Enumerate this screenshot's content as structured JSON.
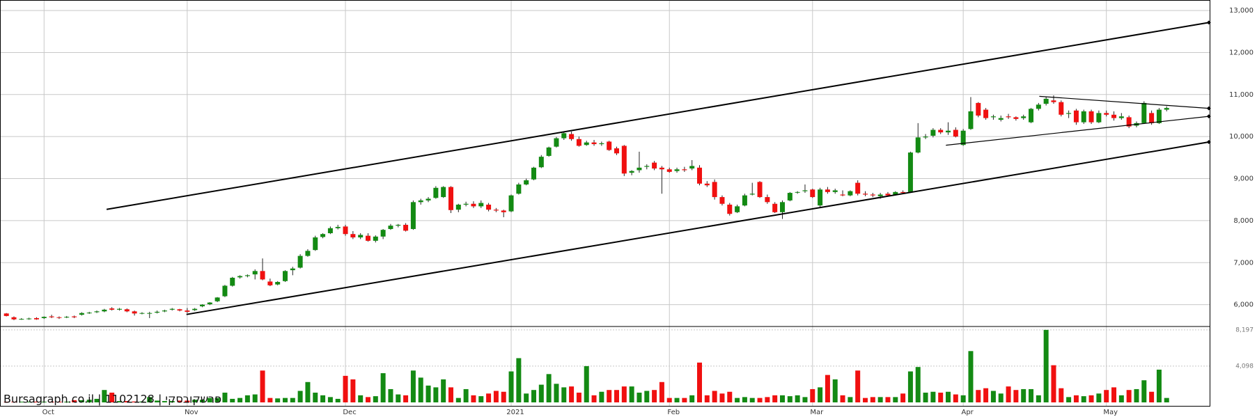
{
  "chart_data": {
    "type": "candlestick",
    "source": "Bursagraph.co.il | 1102128 | פרשקובסקי",
    "categories": [
      null,
      null,
      null,
      null,
      null,
      "Oct",
      null,
      null,
      null,
      null,
      null,
      null,
      null,
      null,
      null,
      null,
      null,
      null,
      null,
      null,
      null,
      null,
      null,
      null,
      "Nov",
      null,
      null,
      null,
      null,
      null,
      null,
      null,
      null,
      null,
      null,
      null,
      null,
      null,
      null,
      null,
      null,
      null,
      null,
      null,
      null,
      "Dec",
      null,
      null,
      null,
      null,
      null,
      null,
      null,
      null,
      null,
      null,
      null,
      null,
      null,
      null,
      null,
      null,
      null,
      null,
      null,
      null,
      null,
      "2021",
      null,
      null,
      null,
      null,
      null,
      null,
      null,
      null,
      null,
      null,
      null,
      null,
      null,
      null,
      null,
      null,
      null,
      null,
      null,
      null,
      "Feb",
      null,
      null,
      null,
      null,
      null,
      null,
      null,
      null,
      null,
      null,
      null,
      null,
      null,
      null,
      null,
      null,
      null,
      null,
      "Mar",
      null,
      null,
      null,
      null,
      null,
      null,
      null,
      null,
      null,
      null,
      null,
      null,
      null,
      null,
      null,
      null,
      null,
      null,
      null,
      "Apr",
      null,
      null,
      null,
      null,
      null,
      null,
      null,
      null,
      null,
      null,
      null,
      null,
      null,
      null,
      null,
      null,
      null,
      null,
      "May",
      null,
      null,
      null,
      null,
      null,
      null,
      null,
      null
    ],
    "open": [
      5790,
      5700,
      5660,
      5660,
      5680,
      5680,
      5720,
      5700,
      5700,
      5720,
      5760,
      5800,
      5820,
      5840,
      5910,
      5880,
      5890,
      5840,
      5790,
      5800,
      5810,
      5840,
      5880,
      5890,
      5860,
      5870,
      5960,
      6010,
      6080,
      6200,
      6450,
      6650,
      6680,
      6720,
      6800,
      6550,
      6480,
      6560,
      6820,
      6880,
      7160,
      7300,
      7610,
      7700,
      7820,
      7860,
      7680,
      7600,
      7640,
      7520,
      7620,
      7800,
      7880,
      7900,
      7800,
      8440,
      8480,
      8540,
      8560,
      8800,
      8260,
      8380,
      8400,
      8340,
      8380,
      8260,
      8240,
      8220,
      8640,
      8860,
      8980,
      9270,
      9540,
      9760,
      9960,
      10060,
      9940,
      9800,
      9860,
      9820,
      9880,
      9720,
      9780,
      9140,
      9200,
      9280,
      9380,
      9260,
      9220,
      9180,
      9220,
      9240,
      9260,
      8880,
      8920,
      8560,
      8380,
      8200,
      8360,
      8620,
      8920,
      8560,
      8400,
      8200,
      8480,
      8680,
      8700,
      8740,
      8360,
      8740,
      8680,
      8620,
      8600,
      8900,
      8640,
      8620,
      8580,
      8640,
      8620,
      8680,
      8680,
      9620,
      9980,
      10020,
      10160,
      10100,
      10160,
      9800,
      10180,
      10800,
      10640,
      10460,
      10400,
      10480,
      10460,
      10440,
      10340,
      10660,
      10780,
      10860,
      10820,
      10540,
      10620,
      10340,
      10600,
      10340,
      10560,
      10520,
      10440,
      10460,
      10260,
      10320,
      10560,
      10320,
      10640
    ],
    "high": [
      5800,
      5720,
      5680,
      5690,
      5700,
      5720,
      5760,
      5720,
      5730,
      5740,
      5820,
      5830,
      5860,
      5900,
      5940,
      5920,
      5910,
      5860,
      5820,
      5830,
      5860,
      5880,
      5920,
      5900,
      5920,
      5920,
      6010,
      6060,
      6180,
      6470,
      6660,
      6700,
      6720,
      6840,
      7100,
      6620,
      6560,
      6820,
      6900,
      7200,
      7320,
      7640,
      7700,
      7860,
      7900,
      7900,
      7750,
      7700,
      7700,
      7650,
      7800,
      7920,
      7920,
      7940,
      8480,
      8520,
      8560,
      8820,
      8820,
      8820,
      8400,
      8450,
      8460,
      8480,
      8420,
      8300,
      8260,
      8620,
      8900,
      9000,
      9280,
      9560,
      9760,
      9990,
      10100,
      10120,
      10000,
      9900,
      9920,
      9880,
      9900,
      9760,
      9800,
      9200,
      9640,
      9340,
      9420,
      9300,
      9260,
      9260,
      9280,
      9440,
      9320,
      8940,
      8980,
      8600,
      8420,
      8380,
      8640,
      8900,
      8940,
      8620,
      8440,
      8480,
      8680,
      8700,
      8860,
      8760,
      8780,
      8800,
      8760,
      8720,
      8720,
      8960,
      8700,
      8660,
      8660,
      8680,
      8700,
      8720,
      9640,
      10320,
      10060,
      10200,
      10200,
      10340,
      10220,
      10180,
      10940,
      10820,
      10680,
      10520,
      10500,
      10540,
      10480,
      10520,
      10680,
      10800,
      10940,
      10980,
      10860,
      10620,
      10660,
      10640,
      10640,
      10620,
      10620,
      10600,
      10560,
      10500,
      10360,
      10840,
      10620,
      10680,
      10720
    ],
    "low": [
      5720,
      5630,
      5640,
      5640,
      5640,
      5660,
      5680,
      5660,
      5680,
      5680,
      5740,
      5780,
      5800,
      5820,
      5860,
      5860,
      5820,
      5740,
      5770,
      5680,
      5790,
      5820,
      5860,
      5840,
      5800,
      5850,
      5940,
      5990,
      6060,
      6180,
      6430,
      6620,
      6650,
      6600,
      6580,
      6440,
      6460,
      6540,
      6700,
      6860,
      7140,
      7280,
      7580,
      7680,
      7790,
      7640,
      7560,
      7560,
      7500,
      7480,
      7560,
      7780,
      7840,
      7740,
      7780,
      8380,
      8440,
      8520,
      8540,
      8180,
      8200,
      8340,
      8300,
      8300,
      8220,
      8200,
      8080,
      8200,
      8620,
      8840,
      8960,
      9250,
      9520,
      9740,
      9920,
      9900,
      9760,
      9780,
      9780,
      9780,
      9660,
      9560,
      9060,
      9080,
      9140,
      9220,
      9200,
      8640,
      9140,
      9140,
      9160,
      9200,
      8840,
      8800,
      8500,
      8360,
      8120,
      8180,
      8340,
      8600,
      8540,
      8400,
      8180,
      8040,
      8460,
      8640,
      8660,
      8540,
      8320,
      8640,
      8640,
      8580,
      8580,
      8600,
      8580,
      8560,
      8520,
      8580,
      8600,
      8640,
      8660,
      9600,
      9940,
      9980,
      10060,
      10040,
      9980,
      9780,
      10160,
      10460,
      10400,
      10400,
      10360,
      10420,
      10380,
      10400,
      10320,
      10620,
      10740,
      10780,
      10480,
      10440,
      10280,
      10300,
      10300,
      10320,
      10480,
      10380,
      10400,
      10200,
      10220,
      10300,
      10280,
      10300,
      10600
    ],
    "close": [
      5730,
      5650,
      5660,
      5670,
      5650,
      5710,
      5700,
      5690,
      5710,
      5700,
      5800,
      5810,
      5840,
      5880,
      5880,
      5900,
      5840,
      5790,
      5800,
      5800,
      5830,
      5860,
      5900,
      5860,
      5830,
      5900,
      6000,
      6050,
      6170,
      6450,
      6640,
      6680,
      6700,
      6800,
      6600,
      6460,
      6540,
      6800,
      6860,
      7160,
      7280,
      7600,
      7680,
      7820,
      7850,
      7680,
      7600,
      7660,
      7520,
      7620,
      7780,
      7880,
      7900,
      7760,
      8440,
      8480,
      8520,
      8780,
      8800,
      8250,
      8380,
      8400,
      8340,
      8420,
      8260,
      8240,
      8200,
      8600,
      8860,
      8960,
      9260,
      9520,
      9740,
      9960,
      10080,
      9940,
      9780,
      9860,
      9820,
      9840,
      9680,
      9600,
      9120,
      9180,
      9260,
      9300,
      9240,
      9220,
      9160,
      9220,
      9200,
      9300,
      8880,
      8840,
      8560,
      8400,
      8160,
      8340,
      8600,
      8640,
      8560,
      8440,
      8200,
      8440,
      8660,
      8680,
      8720,
      8560,
      8740,
      8680,
      8720,
      8600,
      8700,
      8640,
      8620,
      8600,
      8620,
      8600,
      8680,
      8660,
      9620,
      9980,
      10000,
      10160,
      10100,
      10140,
      10000,
      10140,
      10600,
      10500,
      10440,
      10480,
      10440,
      10460,
      10420,
      10480,
      10660,
      10760,
      10900,
      10820,
      10520,
      10560,
      10340,
      10600,
      10340,
      10560,
      10520,
      10440,
      10480,
      10240,
      10320,
      10800,
      10320,
      10640,
      10680
    ],
    "volume": [
      80,
      80,
      80,
      80,
      80,
      80,
      80,
      80,
      80,
      250,
      250,
      300,
      400,
      1400,
      1100,
      150,
      150,
      100,
      100,
      600,
      200,
      150,
      150,
      200,
      200,
      300,
      300,
      500,
      500,
      1100,
      400,
      500,
      800,
      900,
      3600,
      500,
      450,
      500,
      500,
      1300,
      2300,
      1100,
      800,
      600,
      400,
      3000,
      2600,
      800,
      600,
      700,
      3300,
      1500,
      900,
      800,
      3600,
      2800,
      1900,
      1700,
      2600,
      1700,
      500,
      1500,
      800,
      700,
      1000,
      1300,
      1200,
      3500,
      5000,
      1000,
      1400,
      2000,
      3200,
      2100,
      1700,
      1800,
      1100,
      4100,
      800,
      1200,
      1400,
      1400,
      1800,
      1800,
      1100,
      1300,
      1400,
      2300,
      500,
      500,
      500,
      800,
      4500,
      800,
      1300,
      1000,
      1200,
      500,
      600,
      500,
      500,
      600,
      800,
      800,
      700,
      800,
      600,
      1500,
      1700,
      3100,
      2600,
      800,
      600,
      3600,
      500,
      600,
      600,
      600,
      600,
      1000,
      3500,
      4000,
      1100,
      1200,
      1100,
      1200,
      900,
      800,
      5800,
      1400,
      1600,
      1300,
      1000,
      1800,
      1400,
      1500,
      1500,
      800,
      8197,
      4200,
      1600,
      600,
      800,
      700,
      800,
      1000,
      1400,
      1700,
      800,
      1400,
      1500,
      2500,
      1200,
      3700,
      500
    ],
    "up_color": "#138a13",
    "down_color": "#f01010",
    "xlim": [
      -0.85,
      159.8
    ],
    "ylim": [
      5480,
      13250
    ],
    "yticks": [
      {
        "value": 6000,
        "label": "6,000"
      },
      {
        "value": 7000,
        "label": "7,000"
      },
      {
        "value": 8000,
        "label": "8,000"
      },
      {
        "value": 9000,
        "label": "9,000"
      },
      {
        "value": 10000,
        "label": "10,000"
      },
      {
        "value": 11000,
        "label": "11,000"
      },
      {
        "value": 12000,
        "label": "12,000"
      },
      {
        "value": 13000,
        "label": "13,000"
      }
    ],
    "volume_ylim": [
      0,
      8500
    ],
    "volume_ticks": [
      {
        "value": 4098,
        "label": "4,098"
      },
      {
        "value": 8197,
        "label": "8,197"
      }
    ],
    "grid": true,
    "trendlines": [
      {
        "x": [
          13.3,
          159.6
        ],
        "y": [
          8267,
          12714
        ]
      },
      {
        "x": [
          23.9,
          159.6
        ],
        "y": [
          5767,
          9870
        ]
      },
      {
        "x": [
          137.1,
          159.6
        ],
        "y": [
          10958,
          10672
        ]
      },
      {
        "x": [
          124.7,
          159.6
        ],
        "y": [
          9794,
          10481
        ]
      }
    ]
  }
}
